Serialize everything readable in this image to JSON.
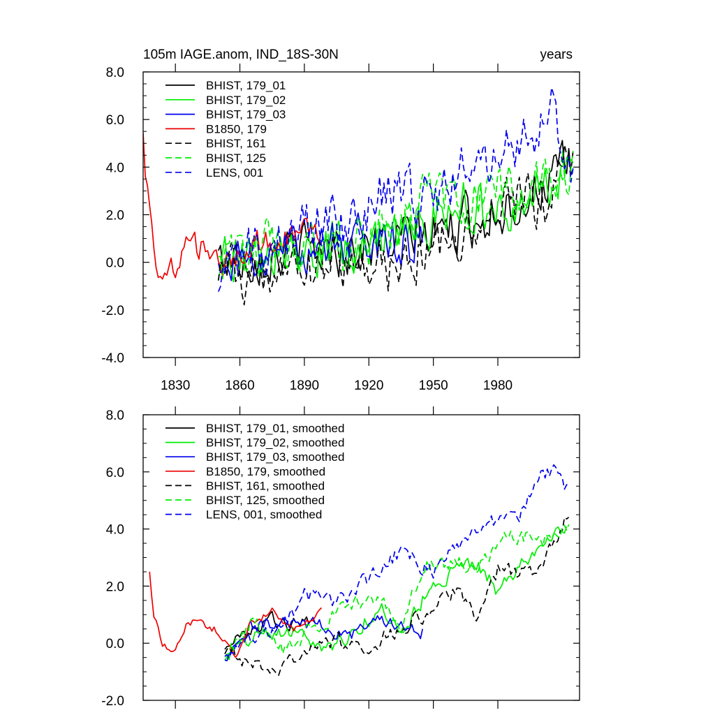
{
  "chart_data": [
    {
      "type": "line",
      "title": "105m IAGE.anom, IND_18S-30N",
      "right_title": "years",
      "xlabel": "",
      "ylabel": "",
      "xlim": [
        1815,
        2018
      ],
      "ylim": [
        -4.0,
        8.0
      ],
      "xticks": [
        1830,
        1860,
        1890,
        1920,
        1950,
        1980
      ],
      "xtick_labels": [
        "1830",
        "1860",
        "1890",
        "1920",
        "1950",
        "1980"
      ],
      "yticks": [
        -4.0,
        -2.0,
        0.0,
        2.0,
        4.0,
        6.0,
        8.0
      ],
      "ytick_labels": [
        "-4.0",
        "-2.0",
        "0.0",
        "2.0",
        "4.0",
        "6.0",
        "8.0"
      ],
      "legend_position": "top-left",
      "series": [
        {
          "name": "BHIST, 179_01",
          "color": "#000000",
          "dash": "solid",
          "start": 1850,
          "end": 2015,
          "seed": 11,
          "noise": 0.95,
          "trend": [
            [
              1850,
              0.2
            ],
            [
              1900,
              0.5
            ],
            [
              1930,
              0.8
            ],
            [
              1950,
              1.2
            ],
            [
              1970,
              1.8
            ],
            [
              1990,
              2.6
            ],
            [
              2015,
              4.0
            ]
          ]
        },
        {
          "name": "BHIST, 179_02",
          "color": "#00ee00",
          "dash": "solid",
          "start": 1850,
          "end": 2015,
          "seed": 22,
          "noise": 0.95,
          "trend": [
            [
              1850,
              0.1
            ],
            [
              1900,
              0.6
            ],
            [
              1930,
              1.2
            ],
            [
              1950,
              2.0
            ],
            [
              1965,
              2.8
            ],
            [
              1980,
              1.9
            ],
            [
              2000,
              3.2
            ],
            [
              2015,
              3.8
            ]
          ]
        },
        {
          "name": "BHIST, 179_03",
          "color": "#0000ee",
          "dash": "solid",
          "start": 1850,
          "end": 1945,
          "seed": 33,
          "noise": 0.9,
          "trend": [
            [
              1850,
              0.0
            ],
            [
              1870,
              0.6
            ],
            [
              1900,
              0.7
            ],
            [
              1920,
              1.0
            ],
            [
              1945,
              0.9
            ]
          ]
        },
        {
          "name": "B1850, 179",
          "color": "#ee0000",
          "dash": "solid",
          "start": 1815,
          "end": 1898,
          "seed": 44,
          "noise": 0.55,
          "trend": [
            [
              1815,
              5.0
            ],
            [
              1818,
              1.8
            ],
            [
              1822,
              0.0
            ],
            [
              1828,
              -0.3
            ],
            [
              1835,
              0.5
            ],
            [
              1845,
              0.8
            ],
            [
              1852,
              -0.3
            ],
            [
              1870,
              0.9
            ],
            [
              1898,
              1.2
            ]
          ]
        },
        {
          "name": "BHIST, 161",
          "color": "#000000",
          "dash": "dashed",
          "start": 1850,
          "end": 2015,
          "seed": 55,
          "noise": 0.95,
          "trend": [
            [
              1850,
              -0.4
            ],
            [
              1880,
              -0.5
            ],
            [
              1900,
              0.0
            ],
            [
              1930,
              -0.2
            ],
            [
              1950,
              0.8
            ],
            [
              1970,
              1.4
            ],
            [
              1985,
              2.5
            ],
            [
              2000,
              2.4
            ],
            [
              2015,
              4.5
            ]
          ]
        },
        {
          "name": "BHIST, 125",
          "color": "#00ee00",
          "dash": "dashed",
          "start": 1850,
          "end": 2015,
          "seed": 66,
          "noise": 1.0,
          "trend": [
            [
              1850,
              -0.2
            ],
            [
              1870,
              0.8
            ],
            [
              1900,
              0.3
            ],
            [
              1930,
              1.3
            ],
            [
              1945,
              2.5
            ],
            [
              1960,
              2.4
            ],
            [
              1975,
              2.9
            ],
            [
              1990,
              3.3
            ],
            [
              2015,
              4.2
            ]
          ]
        },
        {
          "name": "LENS, 001",
          "color": "#0000ee",
          "dash": "dashed",
          "start": 1850,
          "end": 2015,
          "seed": 77,
          "noise": 1.0,
          "trend": [
            [
              1850,
              -0.5
            ],
            [
              1870,
              0.6
            ],
            [
              1890,
              1.4
            ],
            [
              1910,
              1.6
            ],
            [
              1930,
              3.0
            ],
            [
              1950,
              2.6
            ],
            [
              1970,
              4.3
            ],
            [
              1990,
              4.8
            ],
            [
              2005,
              6.3
            ],
            [
              2015,
              3.5
            ]
          ]
        }
      ]
    },
    {
      "type": "line",
      "title": "",
      "xlabel": "",
      "ylabel": "",
      "xlim": [
        1815,
        2018
      ],
      "ylim": [
        -2.0,
        8.0
      ],
      "xticks": [
        1830,
        1860,
        1890,
        1920,
        1950,
        1980
      ],
      "xtick_labels": [],
      "yticks": [
        -2.0,
        0.0,
        2.0,
        4.0,
        6.0,
        8.0
      ],
      "ytick_labels": [
        "-2.0",
        "0.0",
        "2.0",
        "4.0",
        "6.0",
        "8.0"
      ],
      "legend_position": "top-left",
      "series": [
        {
          "name": "BHIST, 179_01, smoothed",
          "color": "#000000",
          "dash": "solid",
          "start": 1853,
          "end": 1895,
          "seed": 12,
          "noise": 0.22,
          "trend": [
            [
              1853,
              -0.3
            ],
            [
              1860,
              0.2
            ],
            [
              1868,
              0.6
            ],
            [
              1875,
              0.8
            ],
            [
              1885,
              0.7
            ],
            [
              1895,
              0.9
            ]
          ]
        },
        {
          "name": "BHIST, 179_02, smoothed",
          "color": "#00ee00",
          "dash": "solid",
          "start": 1853,
          "end": 2012,
          "seed": 23,
          "noise": 0.25,
          "trend": [
            [
              1853,
              -0.4
            ],
            [
              1870,
              0.3
            ],
            [
              1885,
              0.5
            ],
            [
              1900,
              -0.2
            ],
            [
              1915,
              0.5
            ],
            [
              1925,
              1.3
            ],
            [
              1935,
              0.4
            ],
            [
              1950,
              2.1
            ],
            [
              1960,
              2.5
            ],
            [
              1970,
              2.8
            ],
            [
              1980,
              1.8
            ],
            [
              1990,
              2.7
            ],
            [
              2000,
              3.6
            ],
            [
              2012,
              4.2
            ]
          ]
        },
        {
          "name": "BHIST, 179_03, smoothed",
          "color": "#0000ee",
          "dash": "solid",
          "start": 1853,
          "end": 1945,
          "seed": 34,
          "noise": 0.22,
          "trend": [
            [
              1853,
              -0.6
            ],
            [
              1865,
              0.6
            ],
            [
              1880,
              0.8
            ],
            [
              1895,
              0.7
            ],
            [
              1910,
              0.2
            ],
            [
              1925,
              0.8
            ],
            [
              1945,
              0.4
            ]
          ]
        },
        {
          "name": "B1850, 179, smoothed",
          "color": "#ee0000",
          "dash": "solid",
          "start": 1818,
          "end": 1898,
          "seed": 45,
          "noise": 0.12,
          "trend": [
            [
              1818,
              2.4
            ],
            [
              1820,
              1.0
            ],
            [
              1824,
              -0.1
            ],
            [
              1829,
              -0.3
            ],
            [
              1835,
              0.6
            ],
            [
              1840,
              0.8
            ],
            [
              1848,
              0.5
            ],
            [
              1852,
              0.1
            ],
            [
              1858,
              -0.4
            ],
            [
              1865,
              0.7
            ],
            [
              1875,
              1.1
            ],
            [
              1885,
              0.4
            ],
            [
              1898,
              1.2
            ]
          ]
        },
        {
          "name": "BHIST, 161, smoothed",
          "color": "#000000",
          "dash": "dashed",
          "start": 1853,
          "end": 2013,
          "seed": 56,
          "noise": 0.25,
          "trend": [
            [
              1853,
              -0.3
            ],
            [
              1870,
              -0.8
            ],
            [
              1885,
              -0.7
            ],
            [
              1900,
              0.2
            ],
            [
              1915,
              -0.2
            ],
            [
              1930,
              0.3
            ],
            [
              1945,
              1.0
            ],
            [
              1960,
              1.8
            ],
            [
              1970,
              1.0
            ],
            [
              1980,
              2.6
            ],
            [
              1990,
              2.5
            ],
            [
              2000,
              2.5
            ],
            [
              2013,
              4.6
            ]
          ]
        },
        {
          "name": "BHIST, 125, smoothed",
          "color": "#00ee00",
          "dash": "dashed",
          "start": 1853,
          "end": 2013,
          "seed": 67,
          "noise": 0.25,
          "trend": [
            [
              1853,
              -0.6
            ],
            [
              1865,
              0.8
            ],
            [
              1880,
              -0.3
            ],
            [
              1895,
              0.6
            ],
            [
              1910,
              1.2
            ],
            [
              1925,
              1.7
            ],
            [
              1935,
              0.3
            ],
            [
              1945,
              2.8
            ],
            [
              1960,
              2.8
            ],
            [
              1970,
              2.6
            ],
            [
              1985,
              3.8
            ],
            [
              2000,
              3.6
            ],
            [
              2013,
              4.2
            ]
          ]
        },
        {
          "name": "LENS, 001, smoothed",
          "color": "#0000ee",
          "dash": "dashed",
          "start": 1853,
          "end": 2013,
          "seed": 78,
          "noise": 0.25,
          "trend": [
            [
              1853,
              -0.3
            ],
            [
              1870,
              0.4
            ],
            [
              1880,
              0.5
            ],
            [
              1890,
              1.7
            ],
            [
              1905,
              1.4
            ],
            [
              1920,
              2.3
            ],
            [
              1935,
              3.2
            ],
            [
              1950,
              2.5
            ],
            [
              1965,
              3.7
            ],
            [
              1980,
              4.3
            ],
            [
              1990,
              4.5
            ],
            [
              2000,
              5.8
            ],
            [
              2008,
              6.2
            ],
            [
              2013,
              5.2
            ]
          ]
        }
      ]
    }
  ]
}
